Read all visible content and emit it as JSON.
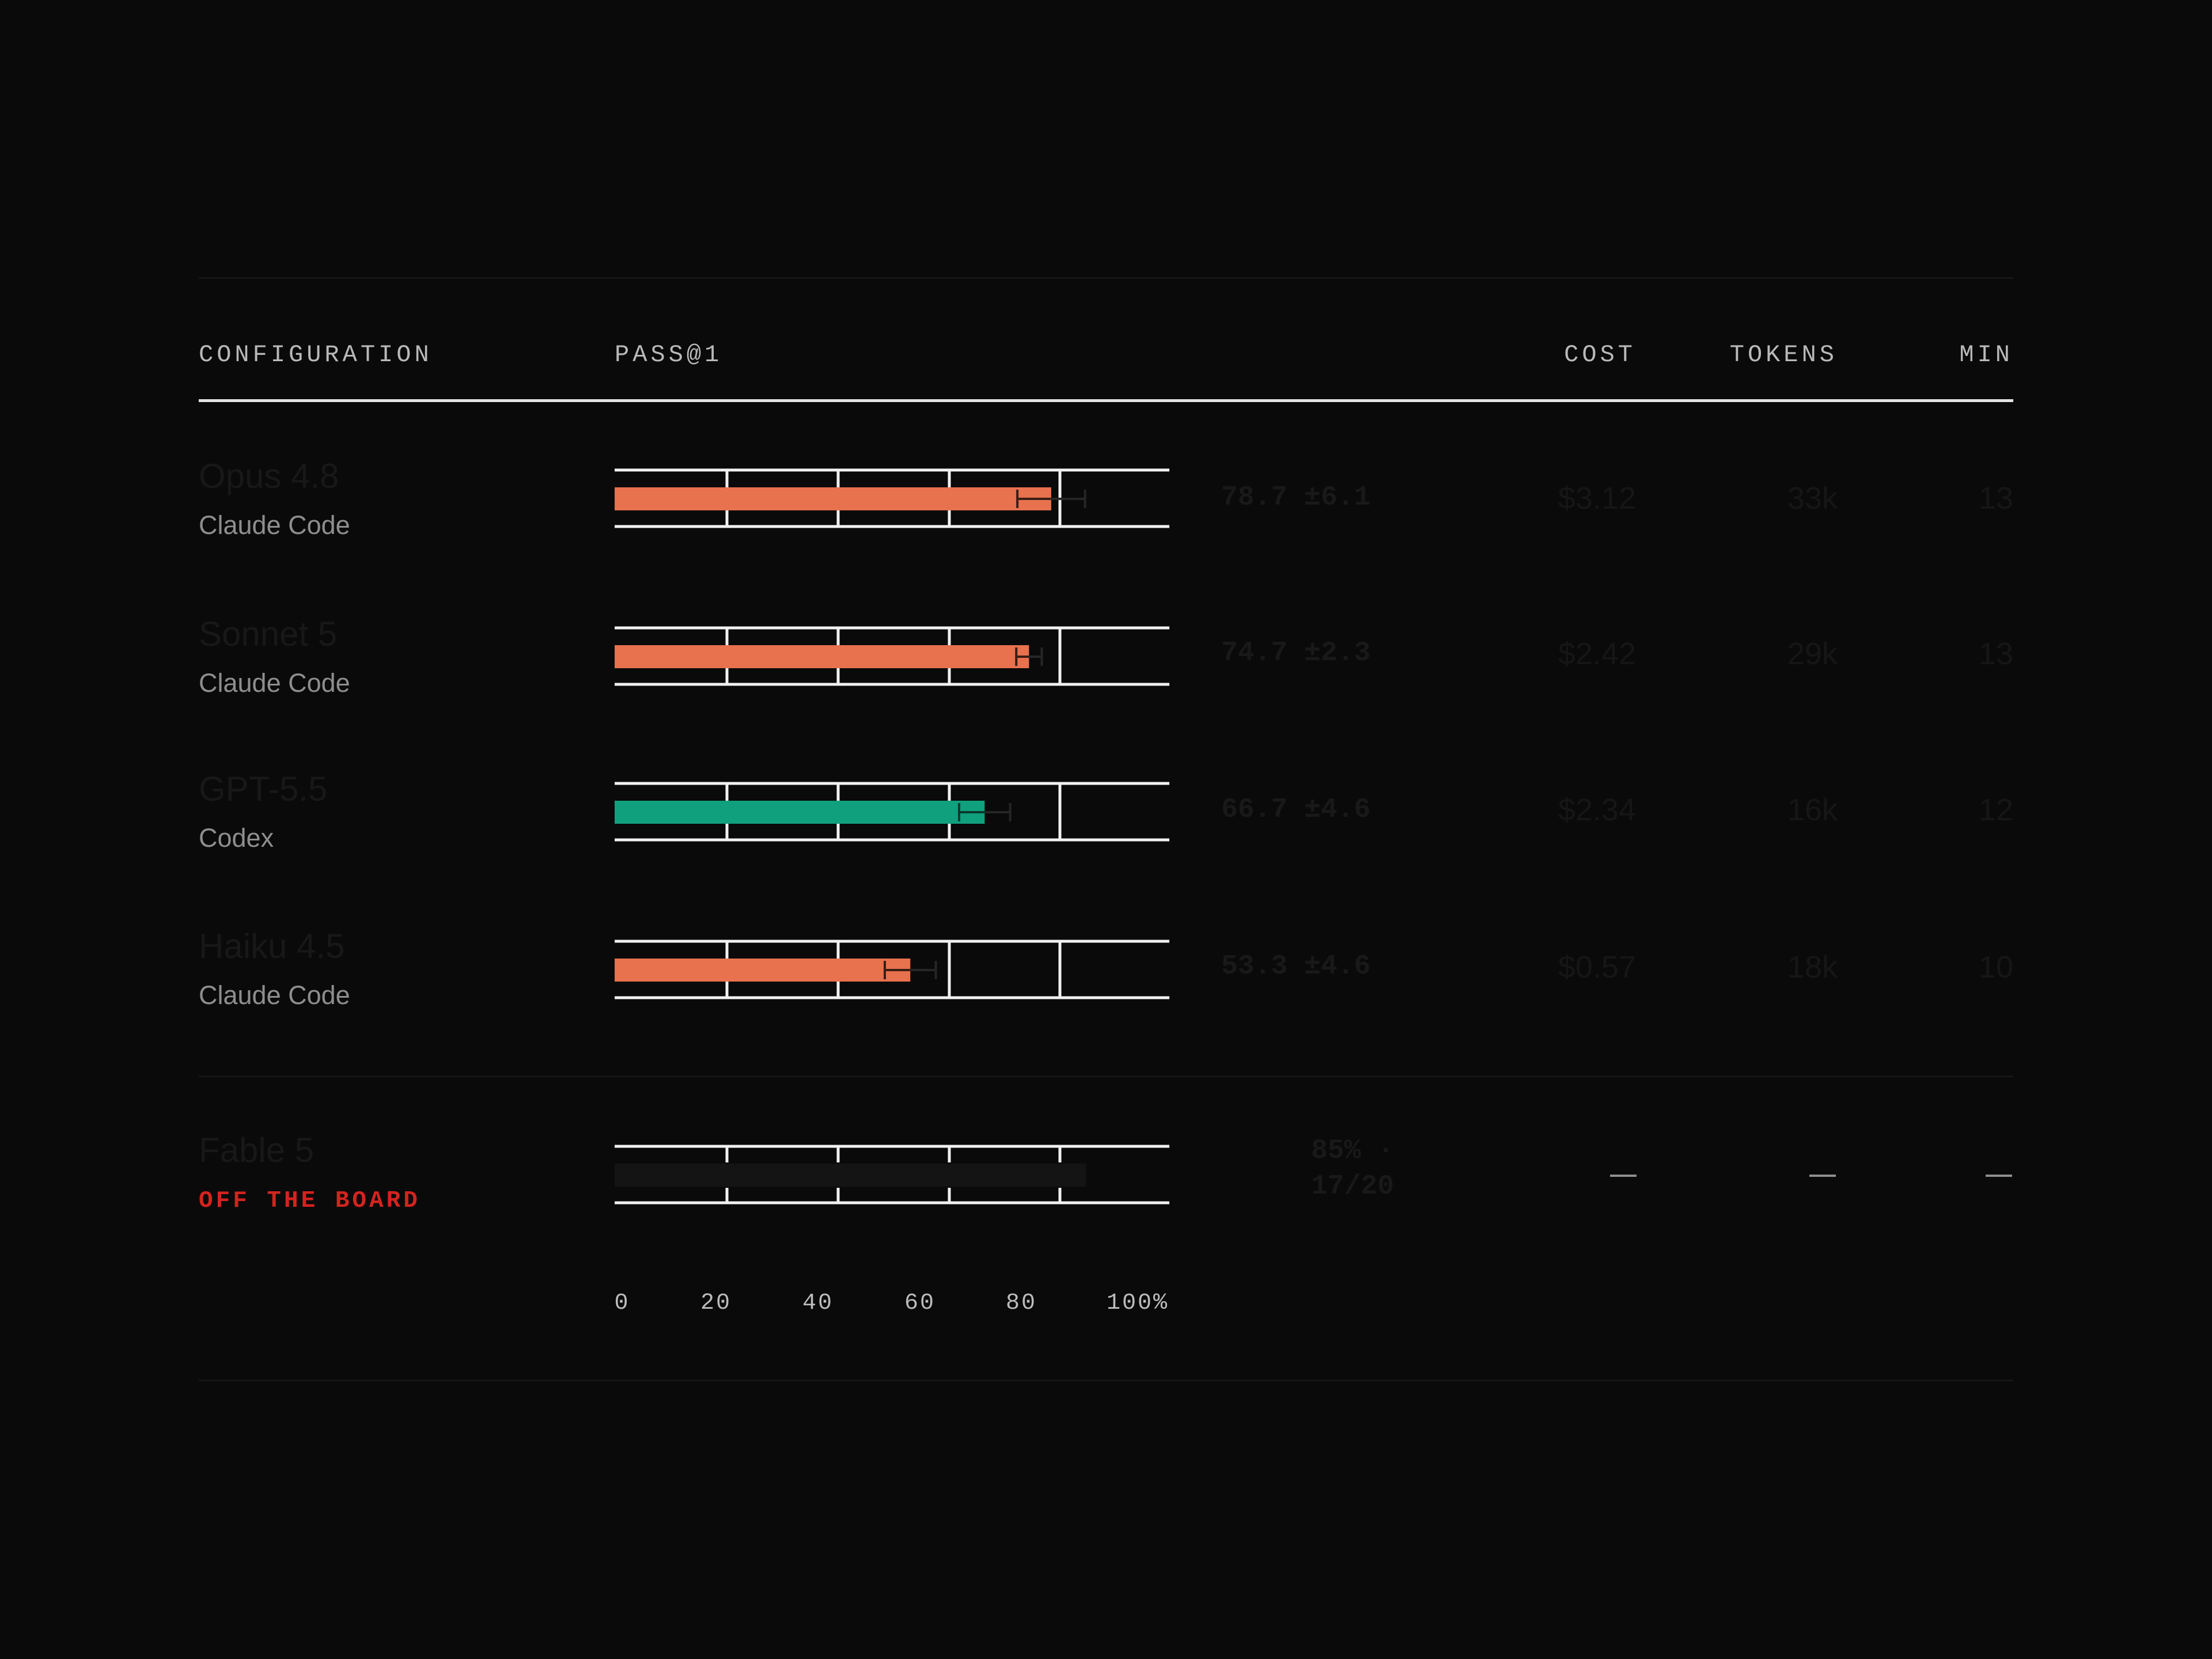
{
  "header": {
    "configuration": "CONFIGURATION",
    "pass": "PASS@1",
    "cost": "COST",
    "tokens": "TOKENS",
    "min": "MIN"
  },
  "rows": [
    {
      "model": "Opus 4.8",
      "harness": "Claude Code",
      "score_text": "78.7 ±6.1",
      "cost": "$3.12",
      "tokens": "33k",
      "min": "13"
    },
    {
      "model": "Sonnet 5",
      "harness": "Claude Code",
      "score_text": "74.7 ±2.3",
      "cost": "$2.42",
      "tokens": "29k",
      "min": "13"
    },
    {
      "model": "GPT-5.5",
      "harness": "Codex",
      "score_text": "66.7 ±4.6",
      "cost": "$2.34",
      "tokens": "16k",
      "min": "12"
    },
    {
      "model": "Haiku 4.5",
      "harness": "Claude Code",
      "score_text": "53.3 ±4.6",
      "cost": "$0.57",
      "tokens": "18k",
      "min": "10"
    }
  ],
  "off_board": {
    "model": "Fable 5",
    "label": "OFF THE BOARD",
    "score_line1": "85% ·",
    "score_line2": "17/20",
    "cost": "—",
    "tokens": "—",
    "min": "—"
  },
  "colors": {
    "anthropic": "#e8714e",
    "openai": "#11a07e",
    "off_board_bar": "#141414",
    "alert": "#d4231f",
    "grid": "#f1f1f1"
  },
  "chart_data": {
    "type": "bar",
    "orientation": "horizontal",
    "categories": [
      "Opus 4.8",
      "Sonnet 5",
      "GPT-5.5",
      "Haiku 4.5",
      "Fable 5"
    ],
    "series": [
      {
        "values": [
          78.7,
          74.7,
          66.7,
          53.3,
          85
        ],
        "errors": [
          6.1,
          2.3,
          4.6,
          4.6,
          null
        ],
        "colors": [
          "#e8714e",
          "#e8714e",
          "#11a07e",
          "#e8714e",
          "#141414"
        ]
      }
    ],
    "xlim": [
      0,
      100
    ],
    "xticks": [
      0,
      20,
      40,
      60,
      80,
      100
    ],
    "tick_labels": [
      "0",
      "20",
      "40",
      "60",
      "80",
      "100%"
    ],
    "grid": true
  }
}
